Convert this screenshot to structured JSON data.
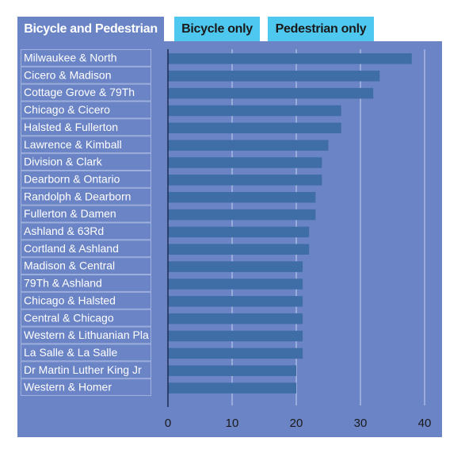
{
  "tabs": [
    {
      "label": "Bicycle and Pedestrian",
      "active": true
    },
    {
      "label": "Bicycle only",
      "active": false
    },
    {
      "label": "Pedestrian only",
      "active": false
    }
  ],
  "colors": {
    "panel": "#6b84c6",
    "bar": "#3f6ea6",
    "active_tab": "#6b84c6",
    "inactive_tab": "#4fc8f0",
    "gridline": "#c7d2ee",
    "label_text": "#ffffff"
  },
  "chart_data": {
    "type": "bar",
    "orientation": "horizontal",
    "categories": [
      "Milwaukee & North",
      "Cicero & Madison",
      "Cottage Grove & 79Th",
      "Chicago & Cicero",
      "Halsted & Fullerton",
      "Lawrence & Kimball",
      "Division & Clark",
      "Dearborn & Ontario",
      "Randolph & Dearborn",
      "Fullerton & Damen",
      "Ashland & 63Rd",
      "Cortland & Ashland",
      "Madison & Central",
      "79Th & Ashland",
      "Chicago & Halsted",
      "Central & Chicago",
      "Western & Lithuanian Pla",
      "La Salle & La Salle",
      "Dr Martin Luther King Jr",
      "Western & Homer"
    ],
    "values": [
      38,
      33,
      32,
      27,
      27,
      25,
      24,
      24,
      23,
      23,
      22,
      22,
      21,
      21,
      21,
      21,
      21,
      21,
      20,
      20
    ],
    "xlim": [
      0,
      40
    ],
    "xticks": [
      0,
      10,
      20,
      30,
      40
    ],
    "grid": true,
    "title": "",
    "xlabel": "",
    "ylabel": ""
  }
}
